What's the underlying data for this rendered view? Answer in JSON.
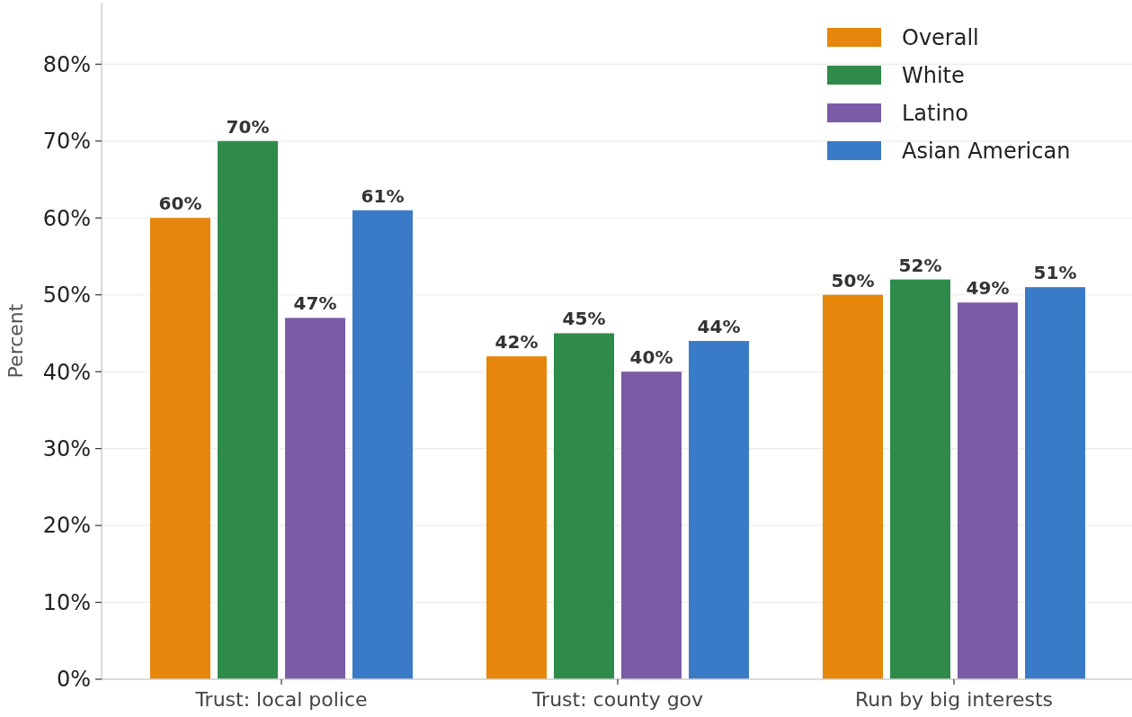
{
  "chart_data": {
    "type": "bar",
    "ylabel": "Percent",
    "categories": [
      "Trust: local police",
      "Trust: county gov",
      "Run by big interests"
    ],
    "series": [
      {
        "name": "Overall",
        "color": "#e6860a",
        "values": [
          60,
          42,
          50
        ],
        "value_labels": [
          "60%",
          "42%",
          "50%"
        ]
      },
      {
        "name": "White",
        "color": "#2e8b4a",
        "values": [
          70,
          45,
          52
        ],
        "value_labels": [
          "70%",
          "45%",
          "52%"
        ]
      },
      {
        "name": "Latino",
        "color": "#7b5ba6",
        "values": [
          47,
          40,
          49
        ],
        "value_labels": [
          "47%",
          "40%",
          "49%"
        ]
      },
      {
        "name": "Asian American",
        "color": "#3a7bc8",
        "values": [
          61,
          44,
          51
        ],
        "value_labels": [
          "61%",
          "44%",
          "51%"
        ]
      }
    ],
    "ylim": [
      0,
      88
    ],
    "yticks": [
      {
        "value": 0,
        "label": "0%"
      },
      {
        "value": 10,
        "label": "10%"
      },
      {
        "value": 20,
        "label": "20%"
      },
      {
        "value": 30,
        "label": "30%"
      },
      {
        "value": 40,
        "label": "40%"
      },
      {
        "value": 50,
        "label": "50%"
      },
      {
        "value": 60,
        "label": "60%"
      },
      {
        "value": 70,
        "label": "70%"
      },
      {
        "value": 80,
        "label": "80%"
      }
    ],
    "grid": "y",
    "legend": "top right"
  }
}
